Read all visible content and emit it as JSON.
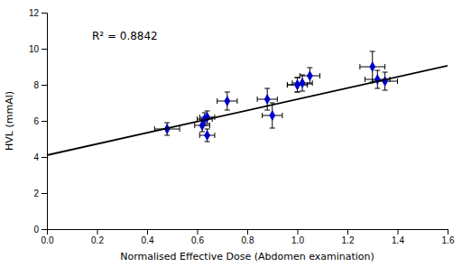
{
  "chart_data": {
    "type": "scatter",
    "x_label": "Normalised Effective Dose (Abdomen examination)",
    "y_label": "HVL (mmAl)",
    "series": [
      {
        "type": "scatter",
        "marker": "diamond",
        "color": "#0000CC",
        "x": [
          0.48,
          0.62,
          0.63,
          0.64,
          0.64,
          0.72,
          0.88,
          0.9,
          1.0,
          1.0,
          1.02,
          1.05,
          1.3,
          1.32,
          1.35
        ],
        "values": [
          5.55,
          5.75,
          6.1,
          6.2,
          5.2,
          7.1,
          7.2,
          6.3,
          8.0,
          8.0,
          8.1,
          8.5,
          9.0,
          8.3,
          8.2
        ],
        "xerr": [
          0.05,
          0.03,
          0.03,
          0.03,
          0.03,
          0.04,
          0.04,
          0.04,
          0.04,
          0.04,
          0.04,
          0.04,
          0.05,
          0.05,
          0.05
        ],
        "yerr": [
          0.35,
          0.35,
          0.35,
          0.35,
          0.35,
          0.5,
          0.6,
          0.7,
          0.4,
          0.4,
          0.45,
          0.45,
          0.85,
          0.5,
          0.5
        ]
      },
      {
        "type": "line",
        "color": "#000000",
        "x": [
          0.0,
          1.6
        ],
        "values": [
          4.1,
          9.06
        ]
      }
    ],
    "annotations": [
      {
        "text": "R² = 0.8842",
        "x": 0.18,
        "y": 10.5
      }
    ],
    "xlim": [
      0.0,
      1.6
    ],
    "ylim": [
      0,
      12
    ],
    "xticks": [
      {
        "value": 0,
        "label": "0.0"
      },
      0.2,
      0.4,
      0.6,
      0.8,
      {
        "value": 1.0,
        "label": "1.0"
      },
      1.2,
      1.4,
      1.6
    ],
    "yticks": [
      0,
      2,
      4,
      6,
      8,
      10,
      12
    ],
    "grid": false
  }
}
